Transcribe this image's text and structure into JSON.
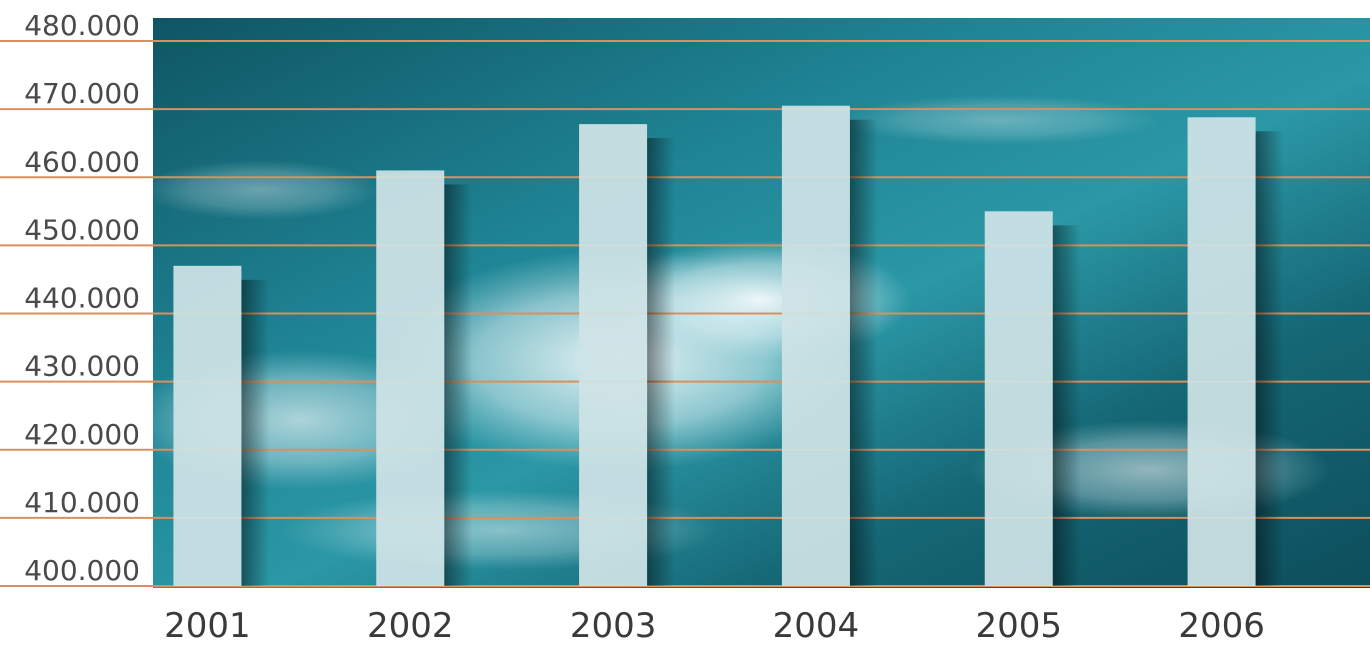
{
  "chart_data": {
    "type": "bar",
    "title": "",
    "xlabel": "",
    "ylabel": "",
    "categories": [
      "2001",
      "2002",
      "2003",
      "2004",
      "2005",
      "2006"
    ],
    "values": [
      447000,
      461000,
      467800,
      470500,
      455000,
      468800
    ],
    "ylim": [
      400000,
      480000
    ],
    "yticks": [
      400000,
      410000,
      420000,
      430000,
      440000,
      450000,
      460000,
      470000,
      480000
    ],
    "ytick_labels": [
      "400.000",
      "410.000",
      "420.000",
      "430.000",
      "440.000",
      "450.000",
      "460.000",
      "470.000",
      "480.000"
    ],
    "grid": true,
    "legend": "none",
    "colors": {
      "bar": "#cfe3e6",
      "gridline": "#d9905e",
      "background_light": "#2a8f9e",
      "background_dark": "#0c4b5a"
    }
  }
}
